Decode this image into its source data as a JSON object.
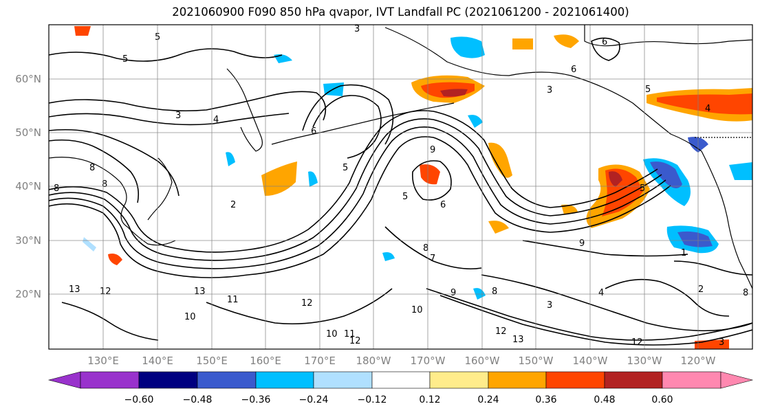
{
  "title": "2021060900 F090 850 hPa qvapor, IVT Landfall PC (2021061200 - 2021061400)",
  "lat_labels": [
    "60°N",
    "50°N",
    "40°N",
    "30°N",
    "20°N"
  ],
  "lon_labels": [
    "130°E",
    "140°E",
    "150°E",
    "160°E",
    "170°E",
    "180°W",
    "170°W",
    "160°W",
    "150°W",
    "140°W",
    "130°W",
    "120°W"
  ],
  "colorbar": {
    "levels": [
      "−0.60",
      "−0.48",
      "−0.36",
      "−0.24",
      "−0.12",
      "0.12",
      "0.24",
      "0.36",
      "0.48",
      "0.60"
    ],
    "colors": [
      "#9932CC",
      "#000080",
      "#3A5ACD",
      "#00BFFF",
      "#B0E0FF",
      "#FFFFFF",
      "#FFEC8B",
      "#FFA500",
      "#FF4500",
      "#B22222",
      "#FF88B0"
    ]
  },
  "contour_labels": [
    "5",
    "3",
    "5",
    "4",
    "3",
    "8",
    "8",
    "6",
    "6",
    "5",
    "3",
    "5",
    "4",
    "6",
    "9",
    "5",
    "5",
    "6",
    "2",
    "8",
    "7",
    "9",
    "9",
    "8",
    "1",
    "2",
    "13",
    "12",
    "13",
    "10",
    "12",
    "11",
    "10",
    "11",
    "12",
    "10",
    "12",
    "13",
    "12",
    "8",
    "4",
    "3",
    "8",
    "3"
  ],
  "palette": {
    "land": "#000000",
    "grid": "#808080"
  }
}
